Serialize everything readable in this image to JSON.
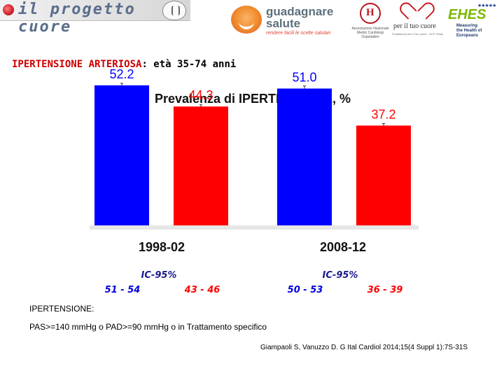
{
  "header": {
    "progetto_cuore": {
      "text": "il progetto cuore"
    },
    "guadagnare_salute": {
      "title_line1": "guadagnare",
      "title_line2": "salute",
      "tagline": "rendere facili le scelte salutari"
    },
    "anmco": {
      "caption": "Associazione Nazionale Medici Cardiologi Ospedalieri"
    },
    "per_il_tuo_cuore": {
      "name": "per il tuo cuore",
      "caption": "Fondazione per il Tuo cuore · HCF Onlus"
    },
    "ehes": {
      "name": "EHES",
      "tagline_1": "Measuring",
      "tagline_2": "the Health of",
      "tagline_3": "Europeans"
    }
  },
  "heading": {
    "title": "IPERTENSIONE ARTERIOSA",
    "subtitle": ": età 35-74 anni"
  },
  "chart_data": {
    "type": "bar",
    "title": "Prevalenza di IPERTENSIONE, %",
    "categories": [
      "1998-02",
      "2008-12"
    ],
    "series": [
      {
        "name": "blue",
        "color": "#0000ff",
        "values": [
          52.2,
          51.0
        ],
        "labels": [
          "52.2",
          "51.0"
        ]
      },
      {
        "name": "red",
        "color": "#ff0000",
        "values": [
          44.3,
          37.2
        ],
        "labels": [
          "44.3",
          "37.2"
        ]
      }
    ],
    "ylim": [
      0,
      60
    ],
    "xlabel": "",
    "ylabel": "",
    "ci_title": "IC-95%",
    "ci": [
      {
        "blue": {
          "low": 51,
          "high": 54,
          "text": "51  -  54"
        },
        "red": {
          "low": 43,
          "high": 46,
          "text": "43  -  46"
        }
      },
      {
        "blue": {
          "low": 50,
          "high": 53,
          "text": "50 -  53"
        },
        "red": {
          "low": 36,
          "high": 39,
          "text": "36  -  39"
        }
      }
    ],
    "ci_text_color": "#1a1a8c",
    "ci_value_color": "#0000dd",
    "ci_red_value_color": "#ff0000",
    "label_blue_color": "#0000ff",
    "label_red_color": "#ff0000"
  },
  "footer": {
    "definition_title": "IPERTENSIONE:",
    "definition_body": "PAS>=140 mmHg o PAD>=90 mmHg o in Trattamento specifico",
    "citation": "Giampaoli S, Vanuzzo D. G Ital Cardiol 2014;15(4 Suppl 1):7S-31S"
  }
}
